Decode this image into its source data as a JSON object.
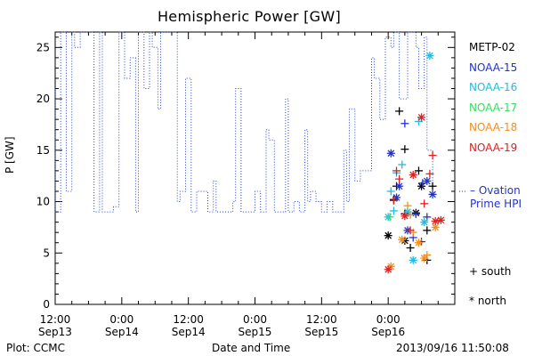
{
  "chart_data": {
    "type": "line",
    "title": "Hemispheric Power [GW]",
    "ylabel": "P [GW]",
    "xlabel": "Date and Time",
    "ylim": [
      0,
      26.5
    ],
    "xlim": [
      -12,
      60
    ],
    "yticks": [
      0,
      5,
      10,
      15,
      20,
      25
    ],
    "xticks": [
      {
        "x": -12,
        "line1": "12:00",
        "line2": "Sep13"
      },
      {
        "x": 0,
        "line1": "0:00",
        "line2": "Sep14"
      },
      {
        "x": 12,
        "line1": "12:00",
        "line2": "Sep14"
      },
      {
        "x": 24,
        "line1": "0:00",
        "line2": "Sep15"
      },
      {
        "x": 36,
        "line1": "12:00",
        "line2": "Sep15"
      },
      {
        "x": 48,
        "line1": "0:00",
        "line2": "Sep16"
      }
    ],
    "series": [
      {
        "name": "Ovation Prime HPI",
        "color": "#2244cc",
        "points": [
          [
            -12,
            21
          ],
          [
            -12,
            9
          ],
          [
            -11,
            9
          ],
          [
            -11,
            26.5
          ],
          [
            -10,
            26.5
          ],
          [
            -10,
            11
          ],
          [
            -9,
            11
          ],
          [
            -9,
            26.5
          ],
          [
            -8.5,
            26.5
          ],
          [
            -8.5,
            25
          ],
          [
            -7.5,
            25
          ],
          [
            -7.5,
            26.5
          ],
          [
            -5,
            26.5
          ],
          [
            -5,
            9
          ],
          [
            -4,
            9
          ],
          [
            -4,
            26.5
          ],
          [
            -3.5,
            26.5
          ],
          [
            -3.5,
            9
          ],
          [
            -1.5,
            9
          ],
          [
            -1.5,
            9.5
          ],
          [
            -0.5,
            9.5
          ],
          [
            -0.5,
            26.5
          ],
          [
            0.5,
            26.5
          ],
          [
            0.5,
            22
          ],
          [
            1.5,
            22
          ],
          [
            1.5,
            24
          ],
          [
            2.5,
            24
          ],
          [
            2.5,
            9
          ],
          [
            3,
            9
          ],
          [
            3,
            26.5
          ],
          [
            4,
            26.5
          ],
          [
            4,
            21
          ],
          [
            5,
            21
          ],
          [
            5,
            26.5
          ],
          [
            5.5,
            26.5
          ],
          [
            5.5,
            25
          ],
          [
            6.5,
            25
          ],
          [
            6.5,
            19
          ],
          [
            7,
            19
          ],
          [
            7,
            26.5
          ],
          [
            8,
            26.5
          ],
          [
            8,
            26.5
          ],
          [
            9,
            26.5
          ],
          [
            9,
            26.5
          ],
          [
            10,
            26.5
          ],
          [
            10,
            10
          ],
          [
            10.5,
            10
          ],
          [
            10.5,
            11
          ],
          [
            11.5,
            11
          ],
          [
            11.5,
            22
          ],
          [
            12.5,
            22
          ],
          [
            12.5,
            9
          ],
          [
            13.5,
            9
          ],
          [
            13.5,
            11
          ],
          [
            15.5,
            11
          ],
          [
            15.5,
            9
          ],
          [
            16.5,
            9
          ],
          [
            16.5,
            12
          ],
          [
            17,
            12
          ],
          [
            17,
            9
          ],
          [
            20,
            9
          ],
          [
            20,
            10
          ],
          [
            20.5,
            10
          ],
          [
            20.5,
            21
          ],
          [
            21.5,
            21
          ],
          [
            21.5,
            9
          ],
          [
            22.5,
            9
          ],
          [
            22.5,
            9
          ],
          [
            24,
            9
          ],
          [
            24,
            11
          ],
          [
            25,
            11
          ],
          [
            25,
            9
          ],
          [
            26,
            9
          ],
          [
            26,
            17
          ],
          [
            26.5,
            17
          ],
          [
            26.5,
            16
          ],
          [
            27.5,
            16
          ],
          [
            27.5,
            9
          ],
          [
            28.5,
            9
          ],
          [
            28.5,
            9
          ],
          [
            29.5,
            9
          ],
          [
            29.5,
            20
          ],
          [
            30,
            20
          ],
          [
            30,
            9
          ],
          [
            31,
            9
          ],
          [
            31,
            10
          ],
          [
            32,
            10
          ],
          [
            32,
            9
          ],
          [
            33,
            9
          ],
          [
            33,
            17
          ],
          [
            33.5,
            17
          ],
          [
            33.5,
            10
          ],
          [
            34,
            10
          ],
          [
            34,
            11
          ],
          [
            35,
            11
          ],
          [
            35,
            10
          ],
          [
            36,
            10
          ],
          [
            36,
            9
          ],
          [
            37,
            9
          ],
          [
            37,
            10
          ],
          [
            38,
            10
          ],
          [
            38,
            9
          ],
          [
            39.5,
            9
          ],
          [
            39.5,
            9
          ],
          [
            40,
            9
          ],
          [
            40,
            15
          ],
          [
            40.5,
            15
          ],
          [
            40.5,
            10
          ],
          [
            41,
            10
          ],
          [
            41,
            19
          ],
          [
            42,
            19
          ],
          [
            42,
            12
          ],
          [
            43,
            12
          ],
          [
            43,
            13
          ],
          [
            45,
            13
          ],
          [
            45,
            24
          ],
          [
            45.5,
            24
          ],
          [
            45.5,
            22
          ],
          [
            46.5,
            22
          ],
          [
            46.5,
            18
          ],
          [
            47.5,
            18
          ],
          [
            47.5,
            26
          ],
          [
            48.5,
            26
          ],
          [
            48.5,
            25
          ],
          [
            49,
            25
          ],
          [
            49,
            26.5
          ],
          [
            50,
            26.5
          ],
          [
            50,
            20
          ],
          [
            51.5,
            20
          ],
          [
            51.5,
            26.5
          ],
          [
            53,
            26.5
          ],
          [
            53,
            25
          ],
          [
            53.5,
            25
          ],
          [
            53.5,
            21
          ],
          [
            54.5,
            21
          ],
          [
            54.5,
            26
          ],
          [
            55,
            26
          ],
          [
            55,
            15
          ],
          [
            56,
            15
          ],
          [
            56,
            11
          ]
        ]
      }
    ],
    "scatter": [
      {
        "name": "METP-02",
        "color": "#000000",
        "points": [
          [
            48,
            6.7,
            "n"
          ],
          [
            50,
            18.8,
            "p"
          ],
          [
            49.5,
            11.5,
            "p"
          ],
          [
            51,
            8.8,
            "p"
          ],
          [
            51,
            6.2,
            "n"
          ],
          [
            52,
            5.5,
            "p"
          ],
          [
            53,
            8.9,
            "n"
          ],
          [
            54,
            11.5,
            "n"
          ],
          [
            55,
            7.2,
            "p"
          ],
          [
            56,
            11.5,
            "p"
          ],
          [
            55,
            4.3,
            "p"
          ],
          [
            49,
            10.2,
            "p"
          ],
          [
            51,
            15.1,
            "p"
          ],
          [
            53.5,
            13,
            "p"
          ]
        ]
      },
      {
        "name": "NOAA-15",
        "color": "#2233cc",
        "points": [
          [
            48.5,
            14.7,
            "n"
          ],
          [
            49.5,
            10.4,
            "n"
          ],
          [
            50,
            11.5,
            "n"
          ],
          [
            51,
            17.6,
            "p"
          ],
          [
            51.5,
            7.2,
            "n"
          ],
          [
            52.5,
            6.5,
            "p"
          ],
          [
            53,
            8.8,
            "p"
          ],
          [
            54,
            6.1,
            "p"
          ],
          [
            55,
            12,
            "n"
          ],
          [
            56,
            10.7,
            "n"
          ],
          [
            55,
            8.5,
            "p"
          ],
          [
            54.2,
            11.8,
            "p"
          ]
        ]
      },
      {
        "name": "NOAA-16",
        "color": "#22bbdd",
        "points": [
          [
            48,
            8.5,
            "n"
          ],
          [
            48.5,
            11,
            "p"
          ],
          [
            49.5,
            12.8,
            "p"
          ],
          [
            50.5,
            13.6,
            "p"
          ],
          [
            51.5,
            9,
            "n"
          ],
          [
            52.5,
            4.3,
            "n"
          ],
          [
            53.5,
            17.8,
            "p"
          ],
          [
            55.5,
            24.2,
            "n"
          ],
          [
            54.5,
            8,
            "n"
          ],
          [
            49,
            9.1,
            "p"
          ]
        ]
      },
      {
        "name": "NOAA-17",
        "color": "#33dd66",
        "points": [
          [
            48.3,
            8.5,
            "p"
          ]
        ]
      },
      {
        "name": "NOAA-18",
        "color": "#f09020",
        "points": [
          [
            48.5,
            3.7,
            "n"
          ],
          [
            50.5,
            6.3,
            "n"
          ],
          [
            51.5,
            9.6,
            "p"
          ],
          [
            52.5,
            7,
            "p"
          ],
          [
            53.5,
            6,
            "n"
          ],
          [
            54.5,
            4.5,
            "n"
          ],
          [
            55,
            4.8,
            "p"
          ],
          [
            56.5,
            7.5,
            "n"
          ],
          [
            52,
            8.7,
            "p"
          ]
        ]
      },
      {
        "name": "NOAA-19",
        "color": "#dd2222",
        "points": [
          [
            48,
            3.4,
            "n"
          ],
          [
            49,
            10.1,
            "p"
          ],
          [
            50,
            12.2,
            "p"
          ],
          [
            51,
            8.6,
            "n"
          ],
          [
            52.5,
            12.6,
            "n"
          ],
          [
            54,
            18.2,
            "n"
          ],
          [
            54.5,
            9.8,
            "p"
          ],
          [
            55.5,
            12.7,
            "p"
          ],
          [
            56,
            14.5,
            "p"
          ],
          [
            56.5,
            8.1,
            "n"
          ],
          [
            57.5,
            8.2,
            "n"
          ],
          [
            52,
            7.2,
            "p"
          ],
          [
            49.5,
            13,
            "p"
          ]
        ]
      }
    ]
  },
  "legend": {
    "items": [
      {
        "label": "METP-02",
        "color": "#000000"
      },
      {
        "label": "NOAA-15",
        "color": "#2233cc"
      },
      {
        "label": "NOAA-16",
        "color": "#22bbdd"
      },
      {
        "label": "NOAA-17",
        "color": "#33dd66"
      },
      {
        "label": "NOAA-18",
        "color": "#f09020"
      },
      {
        "label": "NOAA-19",
        "color": "#dd2222"
      }
    ],
    "ovation_line1": "– Ovation",
    "ovation_line2": "Prime HPI",
    "south_key": "+ south",
    "north_key": "* north"
  },
  "footer": {
    "plot_credit": "Plot: CCMC",
    "timestamp": "2013/09/16 11:50:08"
  }
}
